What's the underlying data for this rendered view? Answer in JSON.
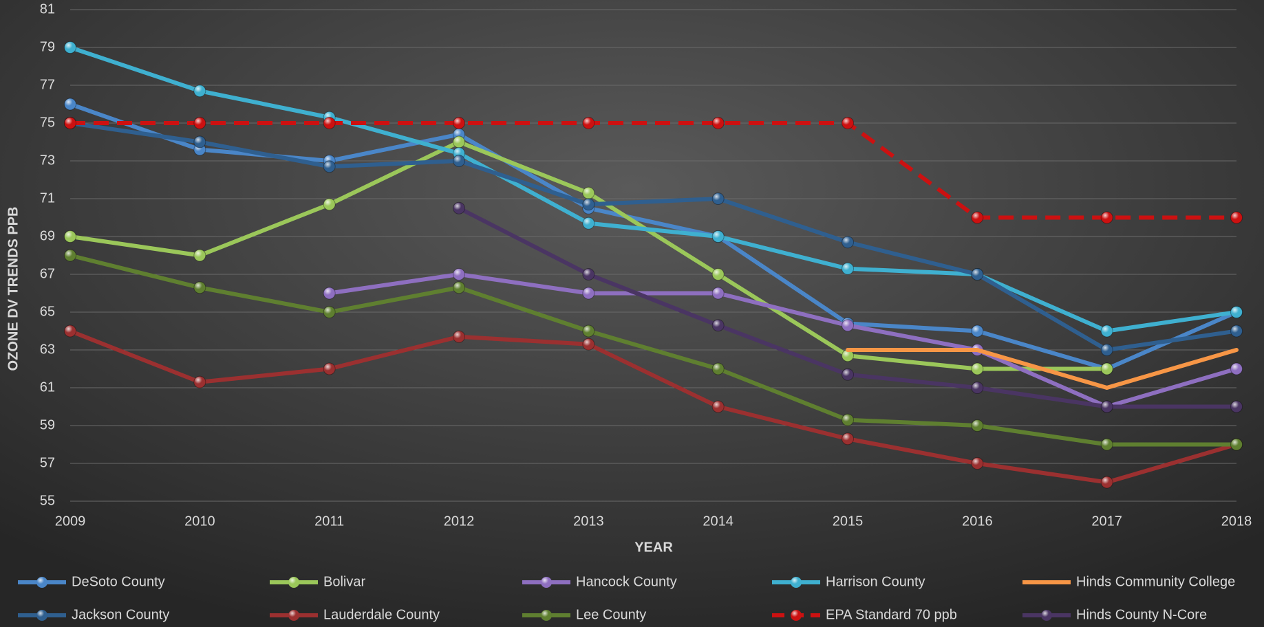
{
  "chart_data": {
    "type": "line",
    "x_label": "YEAR",
    "y_label": "OZONE DV TRENDS PPB",
    "categories": [
      "2009",
      "2010",
      "2011",
      "2012",
      "2013",
      "2014",
      "2015",
      "2016",
      "2017",
      "2018"
    ],
    "ylim": [
      55,
      81
    ],
    "yticks": [
      55,
      57,
      59,
      61,
      63,
      65,
      67,
      69,
      71,
      73,
      75,
      77,
      79,
      81
    ],
    "grid": true,
    "legend": "bottom",
    "series": [
      {
        "name": "DeSoto County",
        "color": "#4a86c8",
        "values": [
          76,
          73.6,
          73,
          74.4,
          70.5,
          69,
          64.4,
          64,
          62,
          65
        ]
      },
      {
        "name": "Bolivar",
        "color": "#9bc75a",
        "values": [
          69,
          68,
          70.7,
          74,
          71.3,
          67,
          62.7,
          62,
          62,
          null
        ]
      },
      {
        "name": "Hancock County",
        "color": "#8e6fc0",
        "values": [
          null,
          null,
          66,
          67,
          66,
          66,
          64.3,
          63,
          60,
          62
        ]
      },
      {
        "name": "Harrison County",
        "color": "#3fb0d0",
        "values": [
          79,
          76.7,
          75.3,
          73.4,
          69.7,
          69,
          67.3,
          67,
          64,
          65
        ]
      },
      {
        "name": "Hinds Community College",
        "color": "#f79646",
        "marker": false,
        "values": [
          null,
          null,
          null,
          null,
          null,
          null,
          63,
          63,
          61,
          63
        ]
      },
      {
        "name": "Jackson County",
        "color": "#2f5f8f",
        "values": [
          75,
          74,
          72.7,
          73,
          70.7,
          71,
          68.7,
          67,
          63,
          64
        ]
      },
      {
        "name": "Lauderdale County",
        "color": "#9b3030",
        "values": [
          64,
          61.3,
          62,
          63.7,
          63.3,
          60,
          58.3,
          57,
          56,
          58
        ]
      },
      {
        "name": "Lee County",
        "color": "#5f7f30",
        "values": [
          68,
          66.3,
          65,
          66.3,
          64,
          62,
          59.3,
          59,
          58,
          58
        ]
      },
      {
        "name": "EPA Standard 70 ppb",
        "color": "#cc1111",
        "dashed": true,
        "values": [
          75,
          75,
          75,
          75,
          75,
          75,
          75,
          70,
          70,
          70
        ]
      },
      {
        "name": "Hinds County N-Core",
        "color": "#4a3563",
        "values": [
          null,
          null,
          null,
          70.5,
          67,
          64.3,
          61.7,
          61,
          60,
          60
        ]
      }
    ]
  }
}
